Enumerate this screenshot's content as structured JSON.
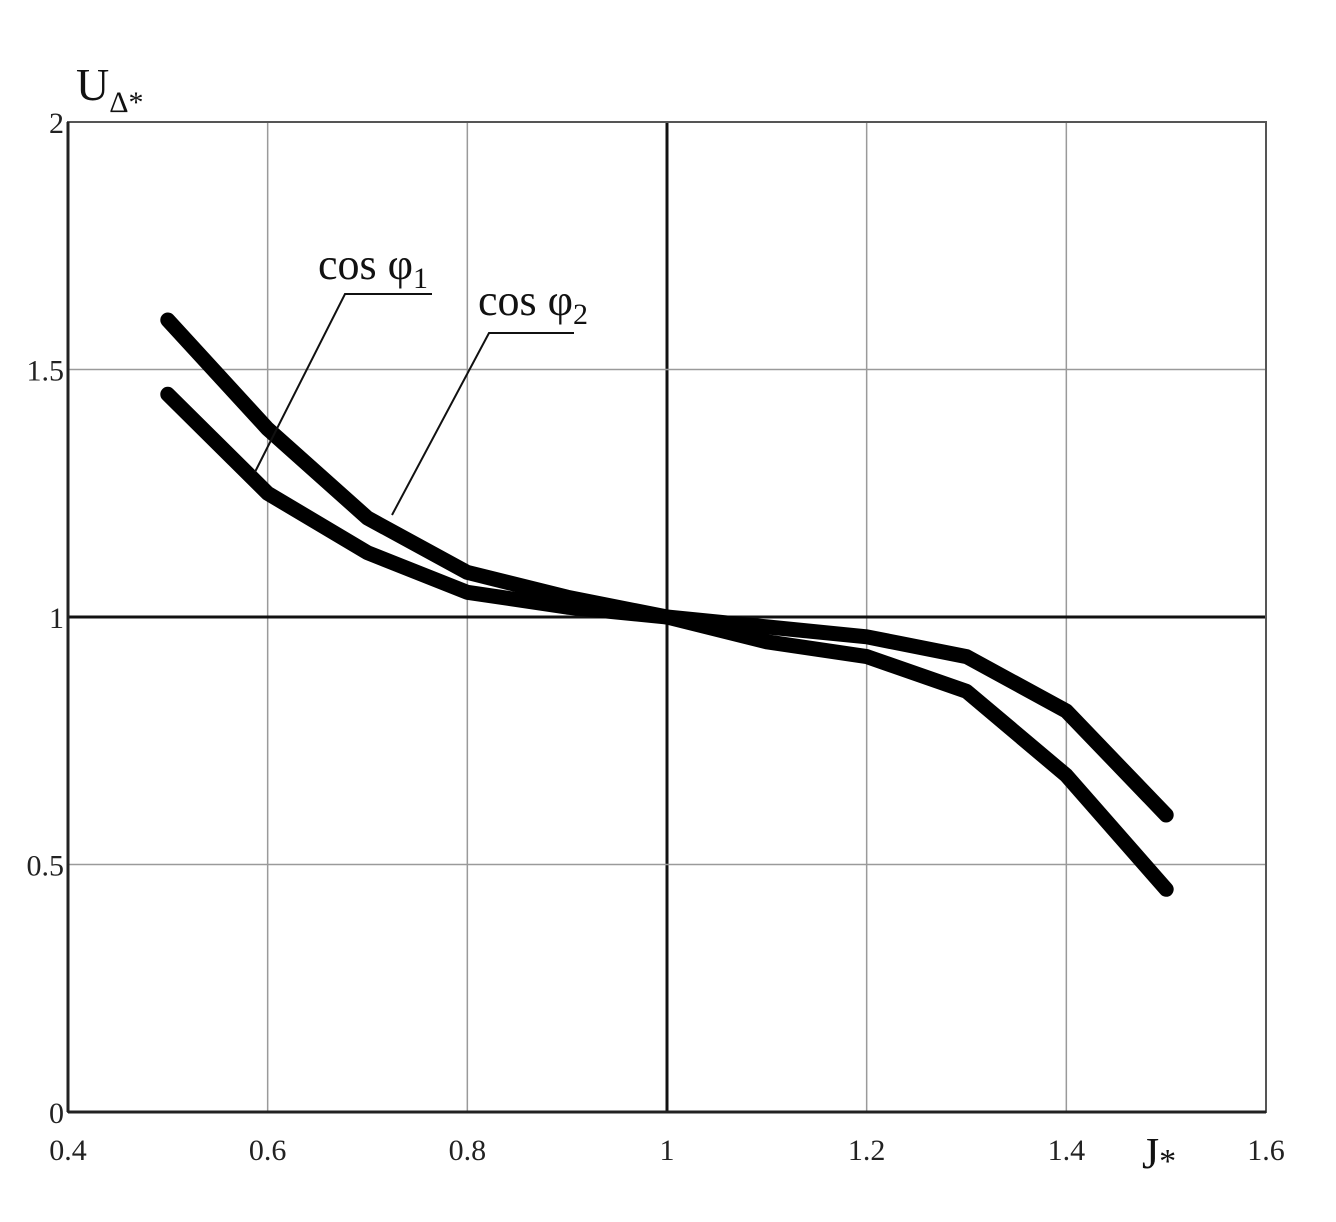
{
  "chart_data": {
    "type": "line",
    "xlabel": "J",
    "xlabel_sub": "*",
    "ylabel": "U",
    "ylabel_sub": "Δ*",
    "xlim": [
      0.4,
      1.6
    ],
    "ylim": [
      0,
      2
    ],
    "x_ticks": [
      "0.4",
      "0.6",
      "0.8",
      "1",
      "1.2",
      "1.4",
      "1.6"
    ],
    "y_ticks": [
      "0",
      "0.5",
      "1",
      "1.5",
      "2"
    ],
    "grid": true,
    "series": [
      {
        "name": "cos φ1",
        "x": [
          0.5,
          0.6,
          0.7,
          0.8,
          0.9,
          1.0,
          1.1,
          1.2,
          1.3,
          1.4,
          1.5
        ],
        "y": [
          1.45,
          1.25,
          1.13,
          1.05,
          1.02,
          1.0,
          0.95,
          0.92,
          0.85,
          0.68,
          0.45
        ]
      },
      {
        "name": "cos φ2",
        "x": [
          0.5,
          0.6,
          0.7,
          0.8,
          0.9,
          1.0,
          1.1,
          1.2,
          1.3,
          1.4,
          1.5
        ],
        "y": [
          1.6,
          1.38,
          1.2,
          1.09,
          1.04,
          1.0,
          0.98,
          0.96,
          0.92,
          0.81,
          0.6
        ]
      }
    ],
    "annotations": [
      {
        "base": "cos φ",
        "sub": "1"
      },
      {
        "base": "cos φ",
        "sub": "2"
      }
    ]
  }
}
